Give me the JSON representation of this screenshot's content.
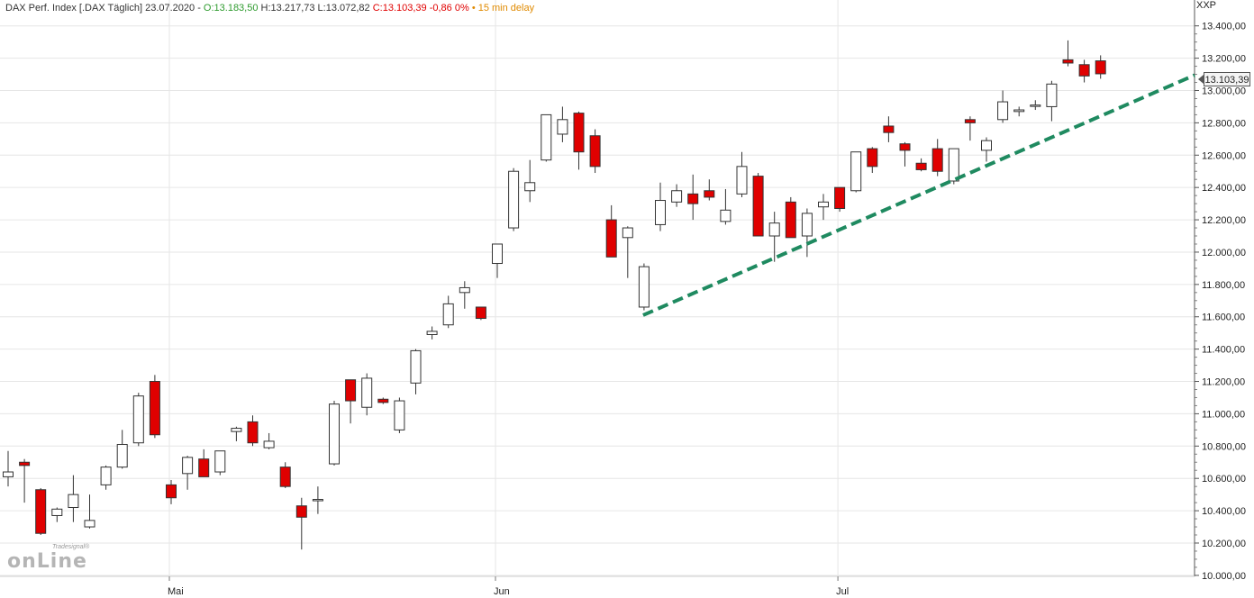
{
  "header": {
    "instrument": "DAX Perf. Index [.DAX Täglich] 23.07.2020 -",
    "open": "O:13.183,50",
    "high_low": "H:13.217,73 L:13.072,82",
    "close": "C:13.103,39 -0,86 0%",
    "delay": "• 15 min delay"
  },
  "symbol": "XXP",
  "last_price_label": "13.103,39",
  "logo": {
    "small": "Tradesignal®",
    "big": "onLine"
  },
  "colors": {
    "up_fill": "#ffffff",
    "down_fill": "#e00000",
    "trendline": "#1f8a60",
    "grid": "#e6e6e6"
  },
  "chart_data": {
    "type": "candlestick",
    "y_ticks": [
      "10.000,00",
      "10.200,00",
      "10.400,00",
      "10.600,00",
      "10.800,00",
      "11.000,00",
      "11.200,00",
      "11.400,00",
      "11.600,00",
      "11.800,00",
      "12.000,00",
      "12.200,00",
      "12.400,00",
      "12.600,00",
      "12.800,00",
      "13.000,00",
      "13.200,00",
      "13.400,00"
    ],
    "y_tick_values": [
      10000,
      10200,
      10400,
      10600,
      10800,
      11000,
      11200,
      11400,
      11600,
      11800,
      12000,
      12200,
      12400,
      12600,
      12800,
      13000,
      13200,
      13400
    ],
    "ylim": [
      9860,
      13560
    ],
    "month_labels": [
      {
        "label": "Mai",
        "index": 10
      },
      {
        "label": "Jun",
        "index": 30
      },
      {
        "label": "Jul",
        "index": 51
      }
    ],
    "candles": [
      {
        "o": 10610,
        "h": 10770,
        "l": 10550,
        "c": 10640
      },
      {
        "o": 10700,
        "h": 10720,
        "l": 10450,
        "c": 10680
      },
      {
        "o": 10530,
        "h": 10540,
        "l": 10250,
        "c": 10260
      },
      {
        "o": 10370,
        "h": 10420,
        "l": 10330,
        "c": 10410
      },
      {
        "o": 10420,
        "h": 10620,
        "l": 10330,
        "c": 10500
      },
      {
        "o": 10300,
        "h": 10500,
        "l": 10290,
        "c": 10340
      },
      {
        "o": 10560,
        "h": 10680,
        "l": 10530,
        "c": 10670
      },
      {
        "o": 10670,
        "h": 10900,
        "l": 10660,
        "c": 10810
      },
      {
        "o": 10820,
        "h": 11130,
        "l": 10800,
        "c": 11110
      },
      {
        "o": 11200,
        "h": 11240,
        "l": 10850,
        "c": 10870
      },
      {
        "o": 10560,
        "h": 10590,
        "l": 10440,
        "c": 10480
      },
      {
        "o": 10630,
        "h": 10740,
        "l": 10530,
        "c": 10730
      },
      {
        "o": 10720,
        "h": 10780,
        "l": 10610,
        "c": 10610
      },
      {
        "o": 10640,
        "h": 10770,
        "l": 10620,
        "c": 10770
      },
      {
        "o": 10890,
        "h": 10920,
        "l": 10830,
        "c": 10910
      },
      {
        "o": 10950,
        "h": 10990,
        "l": 10800,
        "c": 10820
      },
      {
        "o": 10790,
        "h": 10880,
        "l": 10780,
        "c": 10830
      },
      {
        "o": 10670,
        "h": 10700,
        "l": 10540,
        "c": 10550
      },
      {
        "o": 10430,
        "h": 10480,
        "l": 10160,
        "c": 10360
      },
      {
        "o": 10470,
        "h": 10550,
        "l": 10380,
        "c": 10470
      },
      {
        "o": 10690,
        "h": 11080,
        "l": 10680,
        "c": 11060
      },
      {
        "o": 11210,
        "h": 11210,
        "l": 10940,
        "c": 11080
      },
      {
        "o": 11040,
        "h": 11250,
        "l": 10990,
        "c": 11220
      },
      {
        "o": 11090,
        "h": 11100,
        "l": 11060,
        "c": 11070
      },
      {
        "o": 10900,
        "h": 11100,
        "l": 10880,
        "c": 11080
      },
      {
        "o": 11190,
        "h": 11400,
        "l": 11120,
        "c": 11390
      },
      {
        "o": 11490,
        "h": 11540,
        "l": 11460,
        "c": 11510
      },
      {
        "o": 11550,
        "h": 11730,
        "l": 11530,
        "c": 11680
      },
      {
        "o": 11750,
        "h": 11820,
        "l": 11650,
        "c": 11780
      },
      {
        "o": 11660,
        "h": 11660,
        "l": 11580,
        "c": 11590
      },
      {
        "o": 11930,
        "h": 12050,
        "l": 11840,
        "c": 12050
      },
      {
        "o": 12150,
        "h": 12520,
        "l": 12130,
        "c": 12500
      },
      {
        "o": 12380,
        "h": 12570,
        "l": 12310,
        "c": 12430
      },
      {
        "o": 12570,
        "h": 12850,
        "l": 12560,
        "c": 12850
      },
      {
        "o": 12730,
        "h": 12900,
        "l": 12680,
        "c": 12820
      },
      {
        "o": 12860,
        "h": 12870,
        "l": 12510,
        "c": 12620
      },
      {
        "o": 12720,
        "h": 12760,
        "l": 12490,
        "c": 12530
      },
      {
        "o": 12200,
        "h": 12290,
        "l": 11970,
        "c": 11970
      },
      {
        "o": 12090,
        "h": 12160,
        "l": 11840,
        "c": 12150
      },
      {
        "o": 11660,
        "h": 11930,
        "l": 11640,
        "c": 11910
      },
      {
        "o": 12170,
        "h": 12430,
        "l": 12130,
        "c": 12320
      },
      {
        "o": 12310,
        "h": 12420,
        "l": 12280,
        "c": 12380
      },
      {
        "o": 12360,
        "h": 12480,
        "l": 12200,
        "c": 12300
      },
      {
        "o": 12380,
        "h": 12450,
        "l": 12320,
        "c": 12340
      },
      {
        "o": 12190,
        "h": 12390,
        "l": 12170,
        "c": 12260
      },
      {
        "o": 12360,
        "h": 12620,
        "l": 12340,
        "c": 12530
      },
      {
        "o": 12470,
        "h": 12490,
        "l": 12100,
        "c": 12100
      },
      {
        "o": 12100,
        "h": 12250,
        "l": 11940,
        "c": 12180
      },
      {
        "o": 12310,
        "h": 12340,
        "l": 12100,
        "c": 12090
      },
      {
        "o": 12100,
        "h": 12270,
        "l": 11970,
        "c": 12240
      },
      {
        "o": 12280,
        "h": 12360,
        "l": 12200,
        "c": 12310
      },
      {
        "o": 12400,
        "h": 12400,
        "l": 12250,
        "c": 12270
      },
      {
        "o": 12380,
        "h": 12620,
        "l": 12370,
        "c": 12620
      },
      {
        "o": 12640,
        "h": 12650,
        "l": 12490,
        "c": 12530
      },
      {
        "o": 12780,
        "h": 12840,
        "l": 12680,
        "c": 12740
      },
      {
        "o": 12670,
        "h": 12680,
        "l": 12530,
        "c": 12630
      },
      {
        "o": 12550,
        "h": 12580,
        "l": 12500,
        "c": 12510
      },
      {
        "o": 12640,
        "h": 12700,
        "l": 12470,
        "c": 12500
      },
      {
        "o": 12440,
        "h": 12640,
        "l": 12420,
        "c": 12640
      },
      {
        "o": 12820,
        "h": 12840,
        "l": 12690,
        "c": 12800
      },
      {
        "o": 12630,
        "h": 12710,
        "l": 12560,
        "c": 12690
      },
      {
        "o": 12820,
        "h": 13000,
        "l": 12800,
        "c": 12930
      },
      {
        "o": 12870,
        "h": 12900,
        "l": 12840,
        "c": 12880
      },
      {
        "o": 12910,
        "h": 12940,
        "l": 12880,
        "c": 12910
      },
      {
        "o": 12900,
        "h": 13060,
        "l": 12810,
        "c": 13040
      },
      {
        "o": 13190,
        "h": 13310,
        "l": 13150,
        "c": 13170
      },
      {
        "o": 13160,
        "h": 13190,
        "l": 13050,
        "c": 13090
      },
      {
        "o": 13183.5,
        "h": 13217.73,
        "l": 13072.82,
        "c": 13103.39
      }
    ],
    "trendline": {
      "start_index": 39,
      "start_value": 11610,
      "end_value": 13095
    }
  }
}
